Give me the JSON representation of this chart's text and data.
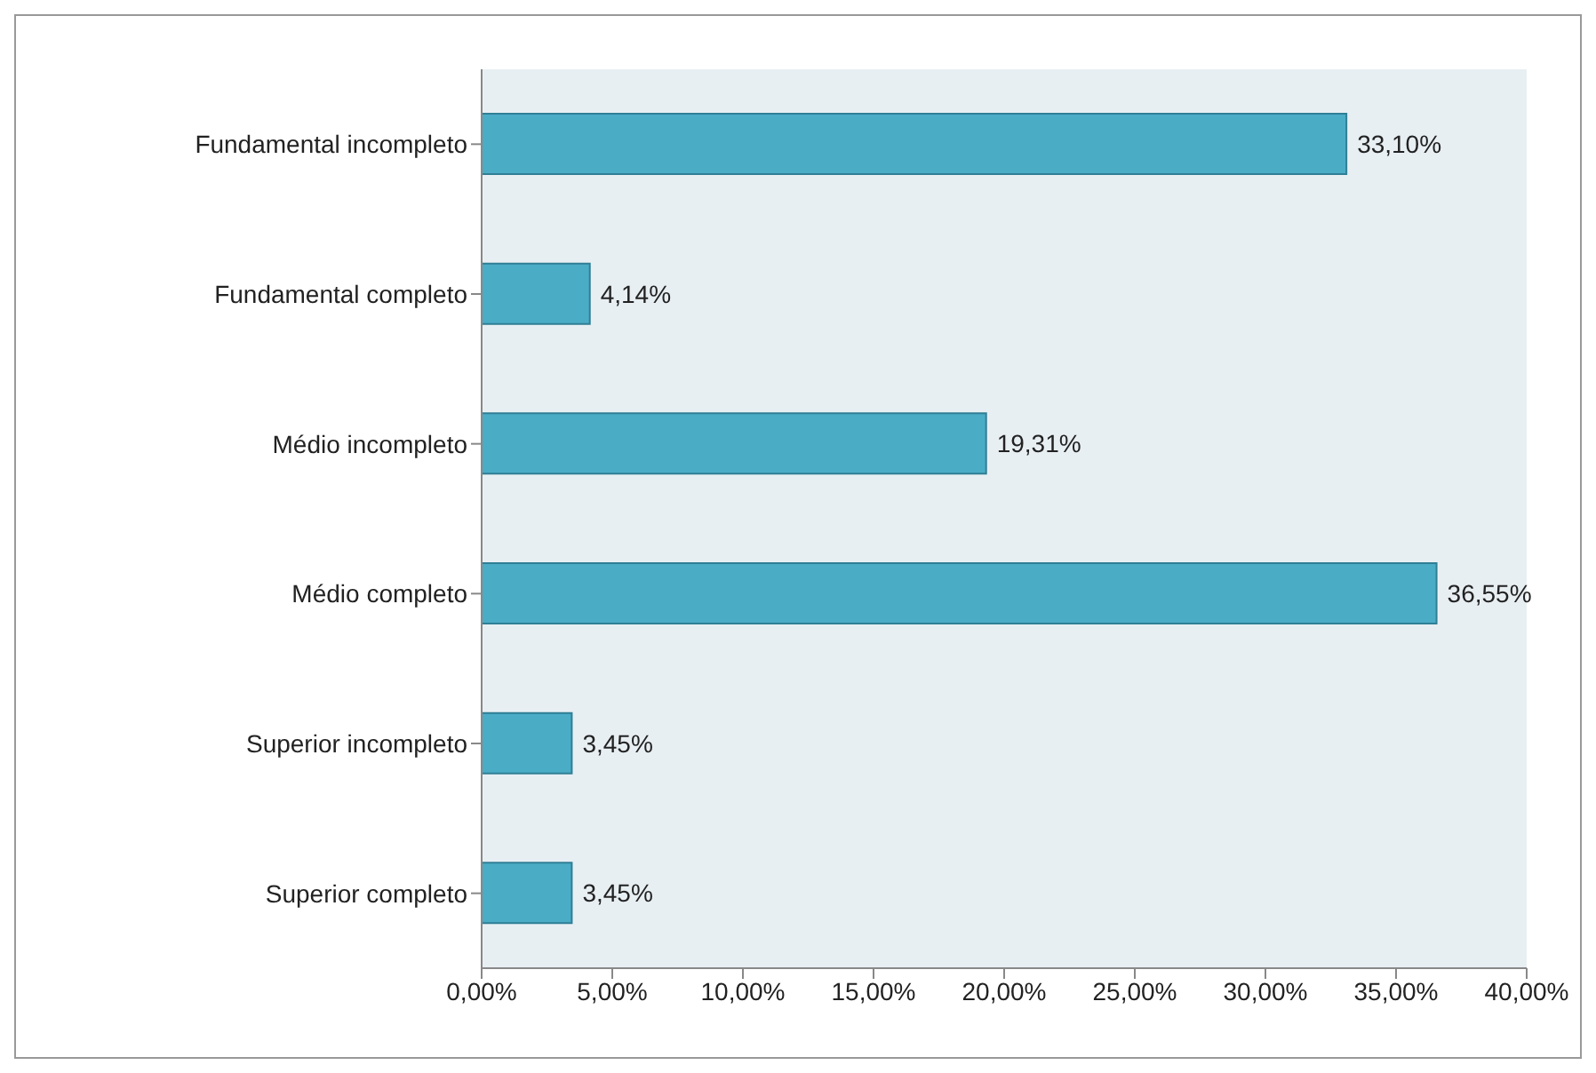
{
  "chart_data": {
    "type": "bar",
    "orientation": "horizontal",
    "categories": [
      "Fundamental incompleto",
      "Fundamental completo",
      "Médio incompleto",
      "Médio completo",
      "Superior incompleto",
      "Superior completo"
    ],
    "values": [
      33.1,
      4.14,
      19.31,
      36.55,
      3.45,
      3.45
    ],
    "value_labels": [
      "33,10%",
      "4,14%",
      "19,31%",
      "36,55%",
      "3,45%",
      "3,45%"
    ],
    "color": "#4bacc6",
    "xlim": [
      0,
      40
    ],
    "xticks": [
      {
        "value": 0,
        "label": "0,00%"
      },
      {
        "value": 5,
        "label": "5,00%"
      },
      {
        "value": 10,
        "label": "10,00%"
      },
      {
        "value": 15,
        "label": "15,00%"
      },
      {
        "value": 20,
        "label": "20,00%"
      },
      {
        "value": 25,
        "label": "25,00%"
      },
      {
        "value": 30,
        "label": "30,00%"
      },
      {
        "value": 35,
        "label": "35,00%"
      },
      {
        "value": 40,
        "label": "40,00%"
      }
    ],
    "grid": false,
    "legend": false
  }
}
